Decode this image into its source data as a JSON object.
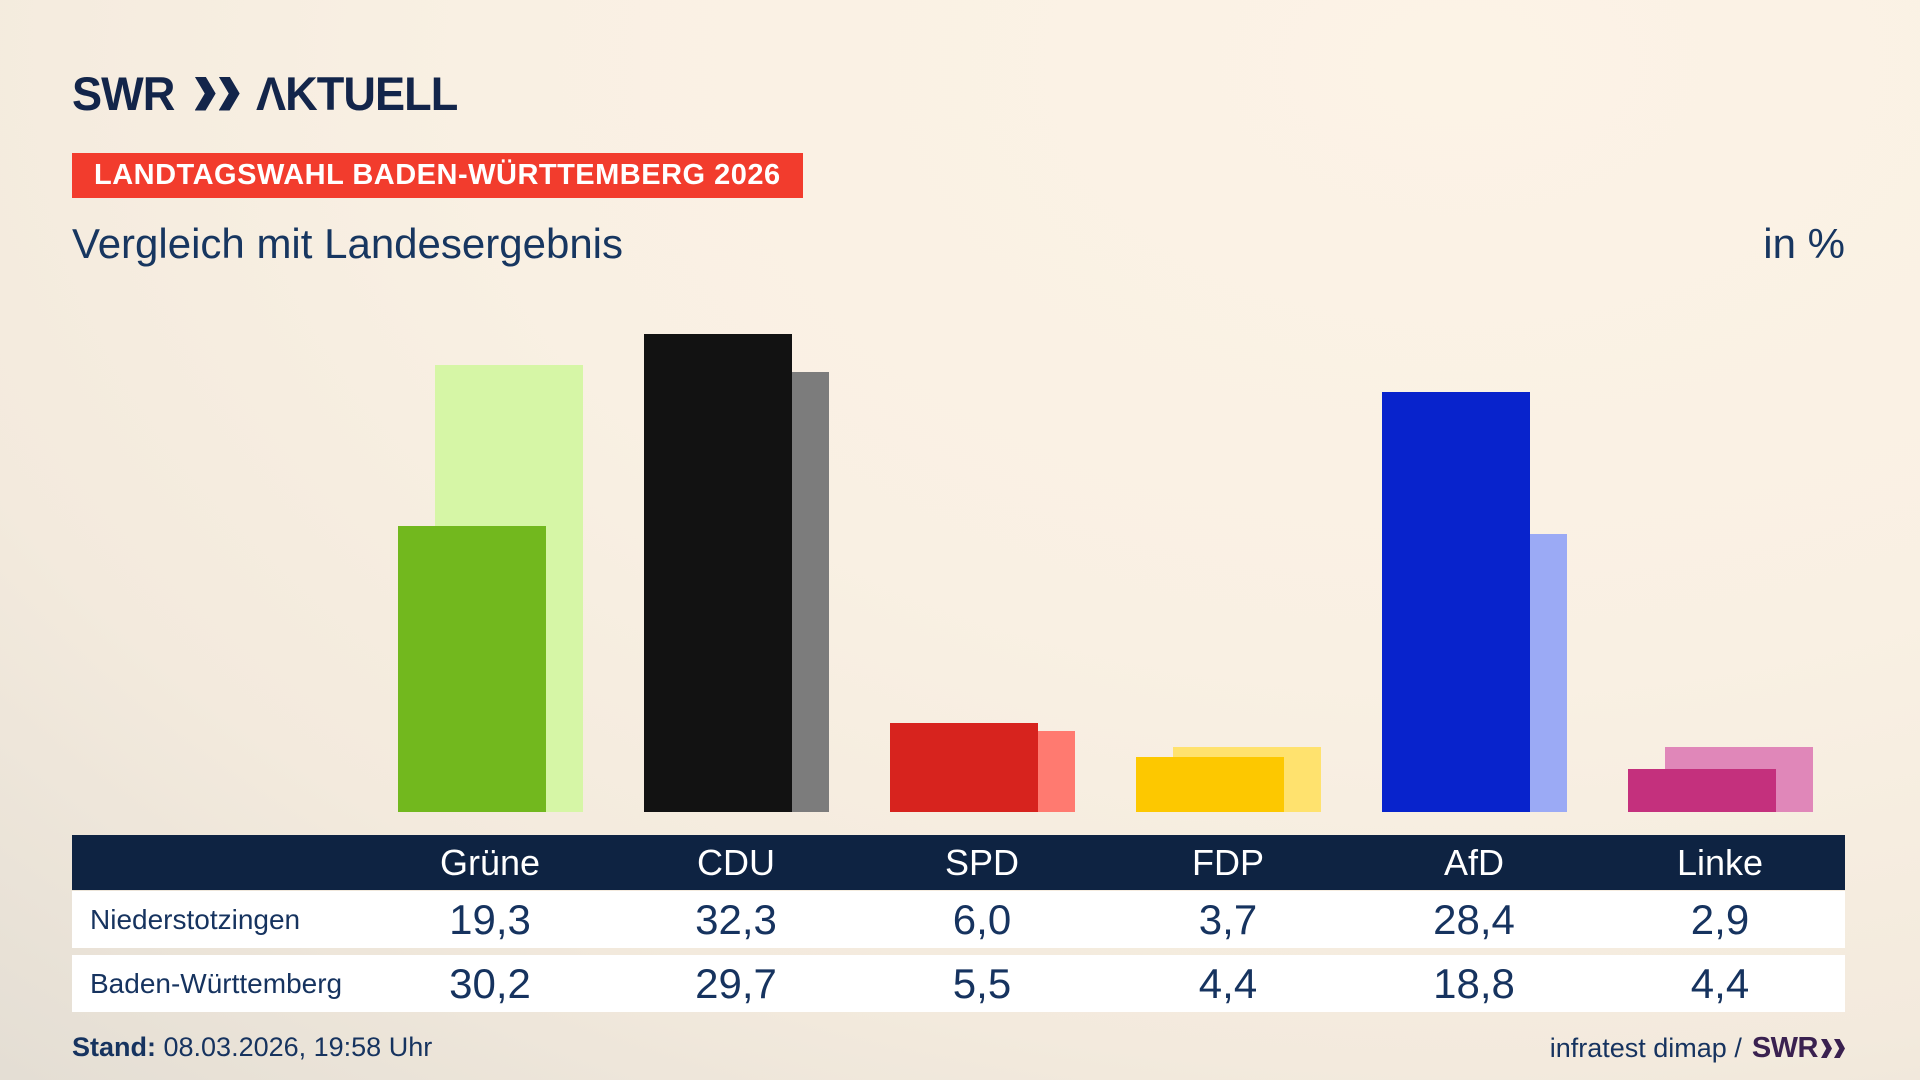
{
  "brand": {
    "logo_swr": "SWR",
    "logo_suffix": "ΛKTUELL"
  },
  "badge": {
    "text": "LANDTAGSWAHL BADEN-WÜRTTEMBERG 2026"
  },
  "title": "Vergleich mit Landesergebnis",
  "unit_label": "in %",
  "chart_data": {
    "type": "bar",
    "categories": [
      "Grüne",
      "CDU",
      "SPD",
      "FDP",
      "AfD",
      "Linke"
    ],
    "series": [
      {
        "name": "Niederstotzingen",
        "values": [
          19.3,
          32.3,
          6.0,
          3.7,
          28.4,
          2.9
        ]
      },
      {
        "name": "Baden-Württemberg",
        "values": [
          30.2,
          29.7,
          5.5,
          4.4,
          18.8,
          4.4
        ]
      }
    ],
    "title": "Vergleich mit Landesergebnis",
    "ylabel": "in %",
    "ylim": [
      0,
      34
    ],
    "grid": false,
    "legend_position": "none",
    "note": "Pro Partei zwei überlappende Balken: vorne Niederstotzingen (kräftige Parteifarbe), dahinter rechts versetzt Baden-Württemberg (helle Parteifarbe)"
  },
  "colors": {
    "party_fg": [
      "#72b81e",
      "#121212",
      "#d7231e",
      "#fdc800",
      "#0823cc",
      "#c4307d"
    ],
    "party_bg": [
      "#d6f6a6",
      "#7c7c7c",
      "#ff7a70",
      "#ffe26e",
      "#9baaf5",
      "#e087b9"
    ],
    "badge_bg": "#f23c2d",
    "navy": "#13254a",
    "table_header_bg": "#0e2342",
    "text_navy": "#16335f",
    "source_brand": "#3a2150"
  },
  "table": {
    "headers": [
      "Grüne",
      "CDU",
      "SPD",
      "FDP",
      "AfD",
      "Linke"
    ],
    "rows": [
      {
        "label": "Niederstotzingen",
        "values": [
          "19,3",
          "32,3",
          "6,0",
          "3,7",
          "28,4",
          "2,9"
        ]
      },
      {
        "label": "Baden-Württemberg",
        "values": [
          "30,2",
          "29,7",
          "5,5",
          "4,4",
          "18,8",
          "4,4"
        ]
      }
    ]
  },
  "footer": {
    "stand_label": "Stand:",
    "stand_value": " 08.03.2026, 19:58 Uhr",
    "source_prefix": "infratest dimap / ",
    "source_brand": "SWR"
  }
}
